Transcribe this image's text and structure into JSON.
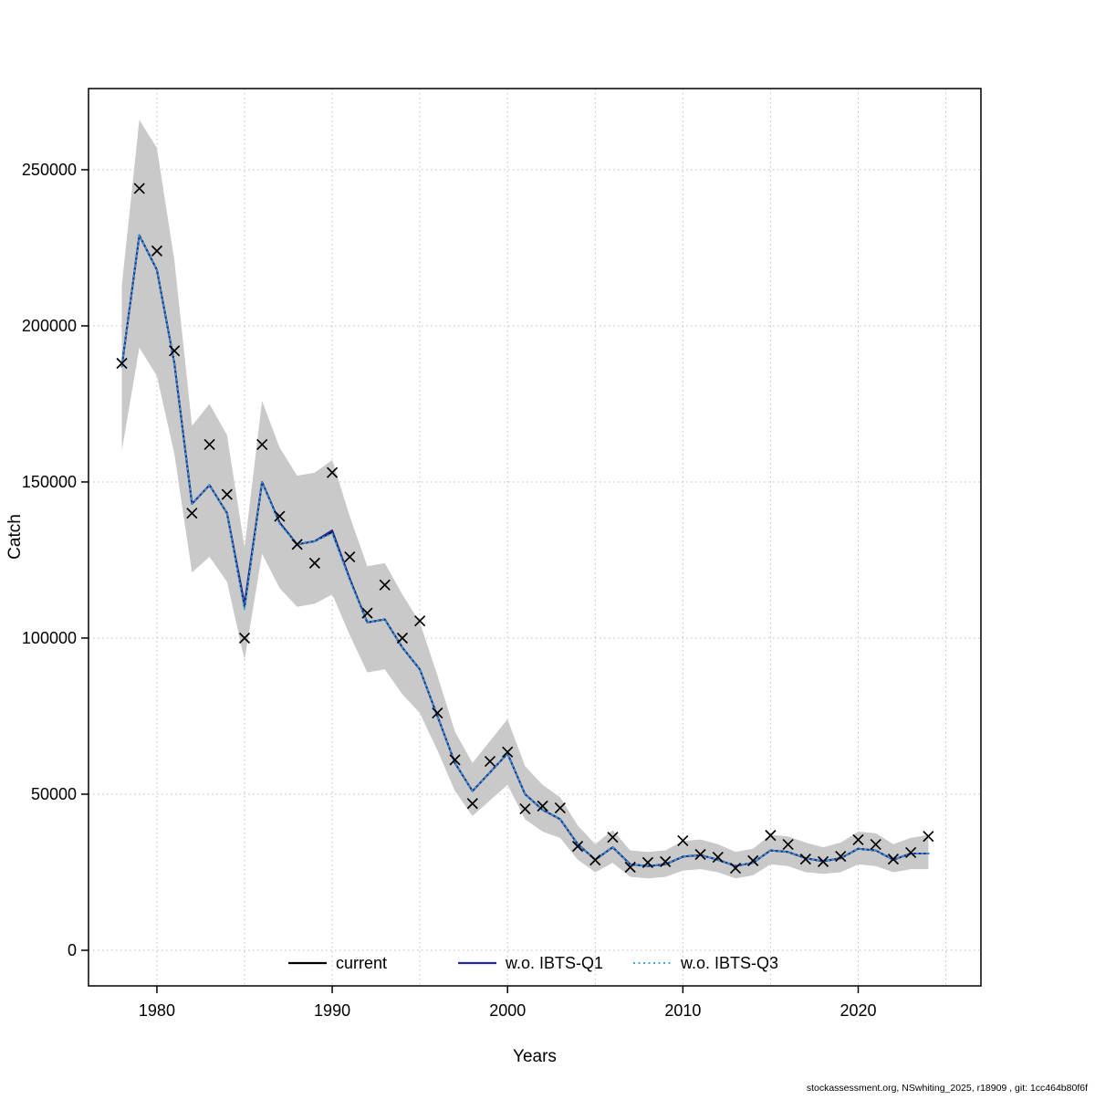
{
  "footer": {
    "text": "stockassessment.org, NSwhiting_2025, r18909 , git: 1cc464b80f6f"
  },
  "chart_data": {
    "type": "line",
    "title": "",
    "xlabel": "Years",
    "ylabel": "Catch",
    "xlim": [
      1976.1,
      2027.0
    ],
    "ylim": [
      -11400,
      276000
    ],
    "x_ticks": [
      1980,
      1990,
      2000,
      2010,
      2020
    ],
    "x_grid": [
      1980,
      1985,
      1990,
      1995,
      2000,
      2005,
      2010,
      2015,
      2020,
      2025
    ],
    "y_ticks": [
      0,
      50000,
      100000,
      150000,
      200000,
      250000
    ],
    "grid": true,
    "grid_color": "#bdbdbd",
    "legend_position": "bottom-center-inside",
    "years": [
      1978,
      1979,
      1980,
      1981,
      1982,
      1983,
      1984,
      1985,
      1986,
      1987,
      1988,
      1989,
      1990,
      1991,
      1992,
      1993,
      1994,
      1995,
      1996,
      1997,
      1998,
      1999,
      2000,
      2001,
      2002,
      2003,
      2004,
      2005,
      2006,
      2007,
      2008,
      2009,
      2010,
      2011,
      2012,
      2013,
      2014,
      2015,
      2016,
      2017,
      2018,
      2019,
      2020,
      2021,
      2022,
      2023,
      2024
    ],
    "series": [
      {
        "name": "current",
        "color": "#000000",
        "style": "solid",
        "values": [
          187000,
          229000,
          218000,
          188000,
          143000,
          149000,
          140000,
          110000,
          150000,
          137000,
          130000,
          131000,
          134000,
          119000,
          105000,
          106000,
          97000,
          90000,
          75000,
          60000,
          51000,
          57000,
          63000,
          50000,
          45000,
          42000,
          34000,
          29000,
          33000,
          27500,
          27000,
          27500,
          30000,
          30500,
          29000,
          27000,
          28000,
          32000,
          31500,
          29500,
          28500,
          29500,
          32500,
          32000,
          29000,
          31000,
          31000
        ]
      },
      {
        "name": "w.o. IBTS-Q1",
        "color": "#28288c",
        "style": "solid",
        "values": [
          187000,
          229000,
          218000,
          188000,
          143000,
          149000,
          140000,
          111000,
          150000,
          137000,
          130000,
          131000,
          134500,
          119000,
          105000,
          106000,
          97000,
          90000,
          75000,
          60000,
          51000,
          57000,
          63000,
          50000,
          45000,
          42000,
          34000,
          29000,
          33000,
          27500,
          27000,
          27500,
          30000,
          30500,
          29000,
          27000,
          28000,
          32000,
          31500,
          29500,
          28500,
          29500,
          32500,
          32000,
          29000,
          31000,
          31000
        ]
      },
      {
        "name": "w.o. IBTS-Q3",
        "color": "#2e9ed6",
        "style": "dotted",
        "values": [
          187000,
          229000,
          218000,
          188000,
          143000,
          149000,
          140000,
          109000,
          150000,
          136500,
          130000,
          131000,
          133500,
          118500,
          105000,
          106000,
          97000,
          90000,
          75000,
          60000,
          51000,
          57000,
          63000,
          50000,
          45000,
          42000,
          34000,
          29000,
          33000,
          27500,
          27000,
          27500,
          30000,
          30500,
          29000,
          27000,
          28000,
          32000,
          31500,
          29500,
          28500,
          29500,
          32500,
          32000,
          29000,
          31000,
          31000
        ]
      }
    ],
    "band": {
      "color": "#c9c9c9",
      "lower": [
        160000,
        193000,
        184000,
        159000,
        121000,
        126000,
        118000,
        93000,
        127000,
        116000,
        110000,
        111000,
        114000,
        101000,
        89000,
        90000,
        82000,
        76000,
        64000,
        51000,
        43000,
        48000,
        53000,
        42000,
        38000,
        36000,
        29000,
        25000,
        28000,
        23500,
        23000,
        23500,
        25500,
        26000,
        25000,
        23000,
        24000,
        27500,
        27000,
        25000,
        24500,
        25000,
        27500,
        27000,
        25000,
        26000,
        26000
      ],
      "upper": [
        213000,
        266000,
        257000,
        221000,
        168000,
        175000,
        165000,
        129000,
        176000,
        161000,
        152000,
        153000,
        157000,
        139000,
        123000,
        124000,
        114000,
        105000,
        88000,
        70000,
        60000,
        67000,
        74000,
        59000,
        53000,
        49000,
        40000,
        34000,
        38500,
        32000,
        31500,
        32000,
        35000,
        35500,
        34000,
        31500,
        32500,
        37000,
        36500,
        34500,
        33000,
        34500,
        38000,
        37500,
        34000,
        36000,
        37000
      ]
    },
    "observed": {
      "marker": "x",
      "color": "#000000",
      "values": [
        188000,
        244000,
        224000,
        192000,
        140000,
        162000,
        146000,
        100000,
        162000,
        139000,
        130000,
        124000,
        153000,
        126000,
        108000,
        117000,
        100000,
        105500,
        76000,
        61000,
        47000,
        60500,
        63500,
        45300,
        46200,
        45600,
        33300,
        28900,
        36200,
        26600,
        28100,
        28400,
        35100,
        30700,
        29800,
        26300,
        28700,
        36800,
        33900,
        29200,
        28400,
        30100,
        35400,
        33900,
        29200,
        31300,
        36500
      ]
    }
  }
}
